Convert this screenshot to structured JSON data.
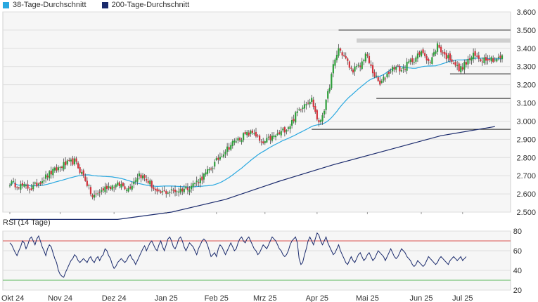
{
  "legend": [
    {
      "label": "38-Tage-Durchschnitt",
      "color": "#29a8e0"
    },
    {
      "label": "200-Tage-Durchschnitt",
      "color": "#1a2a6c"
    }
  ],
  "rsi_title": "RSI (14 Tage)",
  "x_labels": [
    "Okt 24",
    "Nov 24",
    "Dez 24",
    "Jan 25",
    "Feb 25",
    "Mrz 25",
    "Apr 25",
    "Mai 25",
    "Jun 25",
    "Jul 25"
  ],
  "chart_data": [
    {
      "type": "candlestick",
      "ylim": [
        2.5,
        3.6
      ],
      "y_ticks": [
        "3.600",
        "3.500",
        "3.400",
        "3.300",
        "3.200",
        "3.100",
        "3.000",
        "2.900",
        "2.800",
        "2.700",
        "2.600",
        "2.500"
      ],
      "x_ticks": [
        "Okt 24",
        "Nov 24",
        "Dez 24",
        "Jan 25",
        "Feb 25",
        "Mrz 25",
        "Apr 25",
        "Mai 25",
        "Jun 25",
        "Jul 25"
      ],
      "colors": {
        "up": "#2e9e3a",
        "down": "#d2323c",
        "sma38": "#29a8e0",
        "sma200": "#1a2a6c"
      },
      "close_anchors": [
        [
          0,
          2.66
        ],
        [
          12,
          2.63
        ],
        [
          22,
          2.71
        ],
        [
          30,
          2.76
        ],
        [
          36,
          2.78
        ],
        [
          42,
          2.68
        ],
        [
          46,
          2.58
        ],
        [
          54,
          2.64
        ],
        [
          62,
          2.65
        ],
        [
          66,
          2.63
        ],
        [
          72,
          2.71
        ],
        [
          78,
          2.66
        ],
        [
          82,
          2.6
        ],
        [
          86,
          2.61
        ],
        [
          94,
          2.62
        ],
        [
          100,
          2.64
        ],
        [
          106,
          2.68
        ],
        [
          112,
          2.74
        ],
        [
          118,
          2.82
        ],
        [
          124,
          2.88
        ],
        [
          130,
          2.92
        ],
        [
          136,
          2.94
        ],
        [
          140,
          2.87
        ],
        [
          144,
          2.9
        ],
        [
          150,
          2.93
        ],
        [
          156,
          2.98
        ],
        [
          160,
          3.05
        ],
        [
          164,
          3.1
        ],
        [
          168,
          3.12
        ],
        [
          172,
          2.98
        ],
        [
          176,
          3.1
        ],
        [
          180,
          3.3
        ],
        [
          183,
          3.4
        ],
        [
          187,
          3.34
        ],
        [
          190,
          3.28
        ],
        [
          195,
          3.3
        ],
        [
          198,
          3.37
        ],
        [
          202,
          3.27
        ],
        [
          206,
          3.2
        ],
        [
          210,
          3.26
        ],
        [
          214,
          3.3
        ],
        [
          218,
          3.28
        ],
        [
          222,
          3.32
        ],
        [
          226,
          3.35
        ],
        [
          230,
          3.38
        ],
        [
          234,
          3.32
        ],
        [
          238,
          3.42
        ],
        [
          242,
          3.36
        ],
        [
          246,
          3.34
        ],
        [
          250,
          3.28
        ],
        [
          254,
          3.32
        ],
        [
          258,
          3.36
        ],
        [
          262,
          3.34
        ],
        [
          266,
          3.35
        ],
        [
          270,
          3.34
        ]
      ],
      "range_start": "2024-09-30",
      "range_end": "2025-07-31",
      "sma200_points": [
        [
          0,
          2.46
        ],
        [
          60,
          2.46
        ],
        [
          90,
          2.5
        ],
        [
          120,
          2.57
        ],
        [
          150,
          2.67
        ],
        [
          180,
          2.76
        ],
        [
          210,
          2.84
        ],
        [
          240,
          2.92
        ],
        [
          270,
          2.97
        ]
      ],
      "horizontal_levels": [
        {
          "y": 3.5,
          "x_from": 183,
          "x_to": 280
        },
        {
          "y": 3.443,
          "x_from": 193,
          "x_to": 280,
          "band": true
        },
        {
          "y": 3.26,
          "x_from": 245,
          "x_to": 280
        },
        {
          "y": 3.125,
          "x_from": 204,
          "x_to": 280
        },
        {
          "y": 2.955,
          "x_from": 168,
          "x_to": 280
        }
      ]
    },
    {
      "type": "line",
      "title": "RSI (14 Tage)",
      "ylim": [
        20,
        80
      ],
      "y_ticks": [
        "80",
        "60",
        "40",
        "20"
      ],
      "bands": {
        "upper": 70,
        "lower": 30
      },
      "colors": {
        "line": "#1a2a6c",
        "upper": "#d9534f",
        "lower": "#5cb85c"
      },
      "values": [
        68,
        66,
        62,
        58,
        55,
        60,
        64,
        70,
        68,
        62,
        66,
        72,
        74,
        70,
        66,
        72,
        75,
        70,
        64,
        60,
        55,
        62,
        66,
        64,
        58,
        52,
        48,
        40,
        36,
        34,
        33,
        38,
        42,
        46,
        50,
        52,
        56,
        54,
        50,
        48,
        50,
        52,
        50,
        48,
        52,
        54,
        50,
        48,
        52,
        54,
        50,
        54,
        56,
        62,
        60,
        55,
        52,
        46,
        42,
        44,
        48,
        50,
        52,
        50,
        48,
        50,
        54,
        56,
        52,
        50,
        46,
        50,
        54,
        58,
        62,
        65,
        60,
        64,
        68,
        70,
        66,
        62,
        60,
        66,
        70,
        64,
        60,
        66,
        72,
        74,
        70,
        64,
        62,
        66,
        72,
        74,
        70,
        64,
        60,
        64,
        68,
        66,
        64,
        60,
        56,
        62,
        66,
        70,
        72,
        70,
        66,
        60,
        54,
        56,
        58,
        54,
        62,
        66,
        64,
        60,
        56,
        60,
        64,
        68,
        64,
        60,
        62,
        68,
        72,
        74,
        70,
        68,
        72,
        74,
        70,
        66,
        62,
        60,
        56,
        58,
        62,
        66,
        64,
        62,
        66,
        70,
        74,
        72,
        70,
        66,
        62,
        60,
        56,
        54,
        56,
        60,
        66,
        70,
        72,
        74,
        68,
        52,
        46,
        48,
        56,
        62,
        70,
        74,
        70,
        66,
        72,
        78,
        76,
        70,
        66,
        70,
        74,
        68,
        64,
        60,
        56,
        58,
        62,
        66,
        60,
        56,
        52,
        48,
        46,
        50,
        54,
        50,
        48,
        52,
        56,
        58,
        54,
        50,
        52,
        56,
        58,
        54,
        50,
        52,
        56,
        60,
        58,
        56,
        54,
        50,
        54,
        58,
        62,
        58,
        54,
        52,
        54,
        58,
        62,
        60,
        58,
        54,
        52,
        50,
        46,
        44,
        46,
        50,
        48,
        46,
        44,
        46,
        50,
        54,
        52,
        50,
        48,
        46,
        48,
        52,
        54,
        52,
        50,
        48,
        46,
        50,
        52,
        54,
        52,
        50,
        52,
        54,
        50,
        52,
        54
      ]
    }
  ]
}
